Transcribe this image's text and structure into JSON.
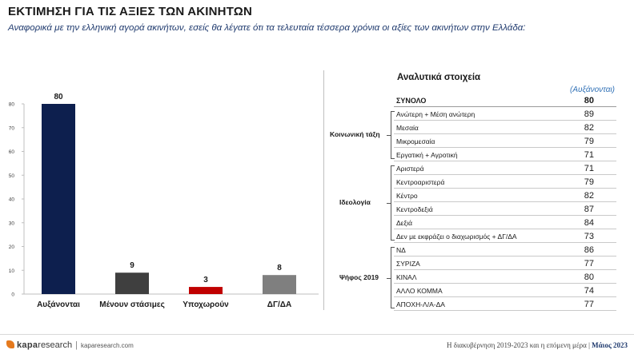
{
  "header": {
    "title": "ΕΚΤΙΜΗΣΗ ΓΙΑ ΤΙΣ ΑΞΙΕΣ ΤΩΝ ΑΚΙΝΗΤΩΝ",
    "subtitle": "Αναφορικά με την ελληνική αγορά ακινήτων, εσείς θα λέγατε ότι τα τελευταία τέσσερα χρόνια οι αξίες των ακινήτων στην Ελλάδα:"
  },
  "chart_data": {
    "type": "bar",
    "categories": [
      "Αυξάνονται",
      "Μένουν στάσιμες",
      "Υποχωρούν",
      "ΔΓ/ΔΑ"
    ],
    "values": [
      80,
      9,
      3,
      8
    ],
    "data_labels": [
      "80",
      "9",
      "3",
      "8"
    ],
    "ylim": [
      0,
      80
    ],
    "yticks": [
      "0",
      "10",
      "20",
      "30",
      "40",
      "50",
      "60",
      "70",
      "80"
    ],
    "colors": [
      "#0d1f4e",
      "#3f3f3f",
      "#c00000",
      "#7f7f7f"
    ],
    "grid": false
  },
  "table": {
    "title": "Αναλυτικά στοιχεία",
    "column_header": "(Αυξάνονται)",
    "total": {
      "label": "ΣΥΝΟΛΟ",
      "value": "80"
    },
    "groups": [
      {
        "label": "Κοινωνική τάξη",
        "rows": [
          {
            "label": "Ανώτερη + Μέση ανώτερη",
            "value": "89"
          },
          {
            "label": "Μεσαία",
            "value": "82"
          },
          {
            "label": "Μικρομεσαία",
            "value": "79"
          },
          {
            "label": "Εργατική + Αγροτική",
            "value": "71"
          }
        ]
      },
      {
        "label": "Ιδεολογία",
        "rows": [
          {
            "label": "Αριστερά",
            "value": "71"
          },
          {
            "label": "Κεντροαριστερά",
            "value": "79"
          },
          {
            "label": "Κέντρο",
            "value": "82"
          },
          {
            "label": "Κεντροδεξιά",
            "value": "87"
          },
          {
            "label": "Δεξιά",
            "value": "84"
          },
          {
            "label": "Δεν με εκφράζει ο διαχωρισμός + ΔΓ/ΔΑ",
            "value": "73"
          }
        ]
      },
      {
        "label": "Ψήφος 2019",
        "rows": [
          {
            "label": "ΝΔ",
            "value": "86"
          },
          {
            "label": "ΣΥΡΙΖΑ",
            "value": "77"
          },
          {
            "label": "ΚΙΝΑΛ",
            "value": "80"
          },
          {
            "label": "ΑΛΛΟ ΚΟΜΜΑ",
            "value": "74"
          },
          {
            "label": "ΑΠΟΧΗ-Λ/Α-ΔΑ",
            "value": "77"
          }
        ]
      }
    ]
  },
  "footer": {
    "brand_a": "kapa",
    "brand_b": "research",
    "separator": "|",
    "site": "kaparesearch.com",
    "right_text": "Η διακυβέρνηση 2019-2023 και η επόμενη μέρα |",
    "date": "Μάιος 2023"
  },
  "colors": {
    "accent_blue": "#2e6fb5",
    "navy": "#0d1f4e",
    "brand_orange": "#e57a1e"
  }
}
